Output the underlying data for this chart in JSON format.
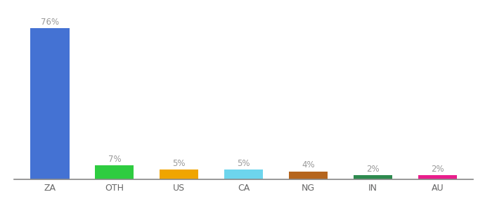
{
  "categories": [
    "ZA",
    "OTH",
    "US",
    "CA",
    "NG",
    "IN",
    "AU"
  ],
  "values": [
    76,
    7,
    5,
    5,
    4,
    2,
    2
  ],
  "bar_colors": [
    "#4472d3",
    "#2ecc40",
    "#f0a500",
    "#6dd5ed",
    "#b5651d",
    "#2d8a4e",
    "#e91e8c"
  ],
  "label_color": "#999999",
  "background_color": "#ffffff",
  "ylim": [
    0,
    85
  ],
  "bar_width": 0.6
}
